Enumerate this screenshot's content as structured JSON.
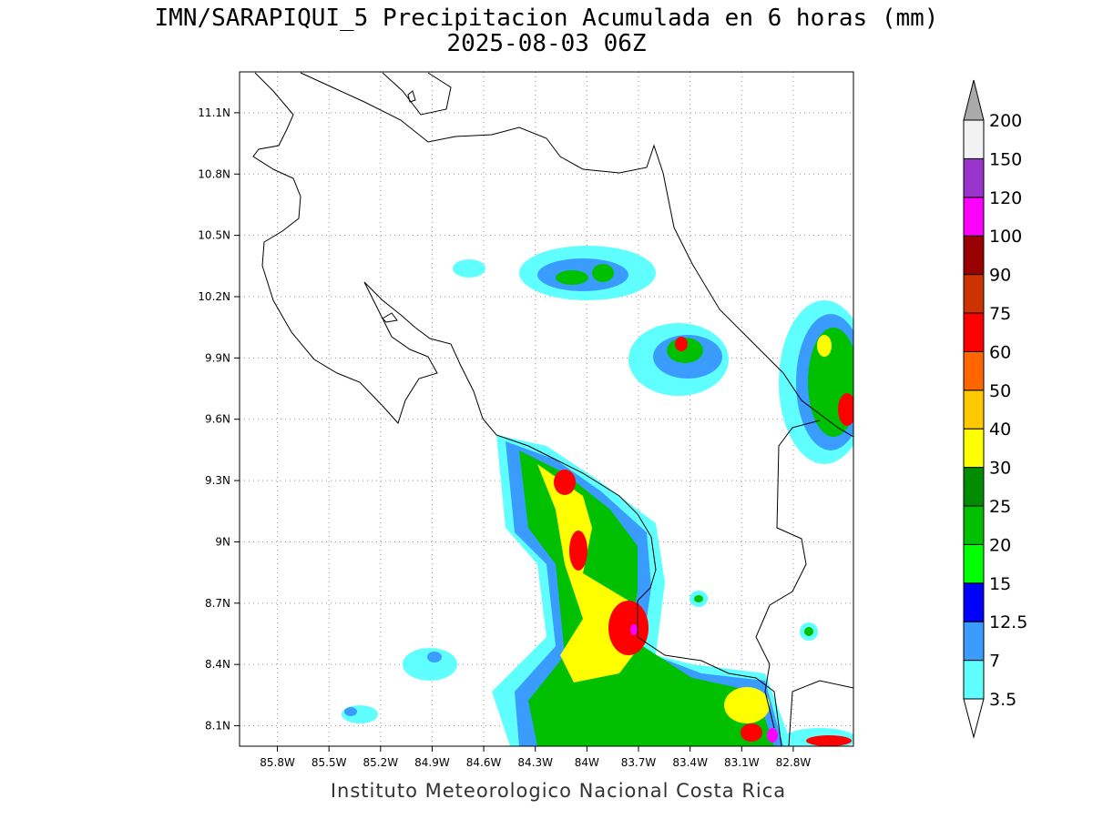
{
  "title": "IMN/SARAPIQUI_5 Precipitacion Acumulada en 6 horas (mm)",
  "subtitle": "2025-08-03 06Z",
  "map": {
    "xlim": [
      -86.02,
      -82.45
    ],
    "ylim": [
      8.0,
      11.3
    ],
    "grid": true,
    "xticks": [
      {
        "value": -85.8,
        "label": "85.8W"
      },
      {
        "value": -85.5,
        "label": "85.5W"
      },
      {
        "value": -85.2,
        "label": "85.2W"
      },
      {
        "value": -84.9,
        "label": "84.9W"
      },
      {
        "value": -84.6,
        "label": "84.6W"
      },
      {
        "value": -84.3,
        "label": "84.3W"
      },
      {
        "value": -84.0,
        "label": "84W"
      },
      {
        "value": -83.7,
        "label": "83.7W"
      },
      {
        "value": -83.4,
        "label": "83.4W"
      },
      {
        "value": -83.1,
        "label": "83.1W"
      },
      {
        "value": -82.8,
        "label": "82.8W"
      }
    ],
    "yticks": [
      {
        "value": 11.1,
        "label": "11.1N"
      },
      {
        "value": 10.8,
        "label": "10.8N"
      },
      {
        "value": 10.5,
        "label": "10.5N"
      },
      {
        "value": 10.2,
        "label": "10.2N"
      },
      {
        "value": 9.9,
        "label": "9.9N"
      },
      {
        "value": 9.6,
        "label": "9.6N"
      },
      {
        "value": 9.3,
        "label": "9.3N"
      },
      {
        "value": 9.0,
        "label": "9N"
      },
      {
        "value": 8.7,
        "label": "8.7N"
      },
      {
        "value": 8.4,
        "label": "8.4N"
      },
      {
        "value": 8.1,
        "label": "8.1N"
      }
    ]
  },
  "colorbar": {
    "levels": [
      3.5,
      7,
      12.5,
      15,
      20,
      25,
      30,
      40,
      50,
      60,
      75,
      90,
      100,
      120,
      150,
      200
    ],
    "colors": [
      "#60ffff",
      "#3a9cff",
      "#0000ff",
      "#00ff00",
      "#00c000",
      "#008c00",
      "#ffff00",
      "#ffc800",
      "#ff6600",
      "#ff0000",
      "#cc3300",
      "#990000",
      "#ff00ff",
      "#9933cc",
      "#f2f2f2"
    ],
    "under_color": "#ffffff",
    "over_color": "#aaaaaa"
  },
  "footer": "Instituto Meteorologico Nacional Costa Rica"
}
